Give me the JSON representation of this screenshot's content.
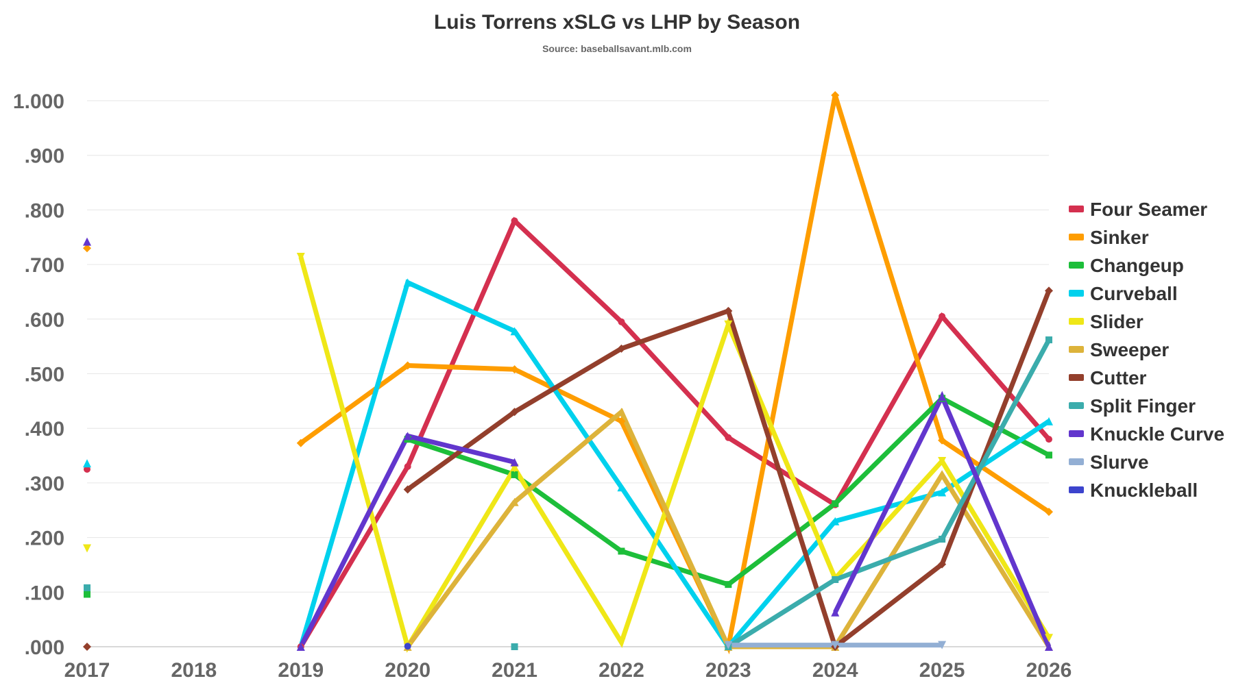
{
  "chart_data": {
    "type": "line",
    "title": "Luis Torrens xSLG vs LHP by Season",
    "subtitle": "Source: baseballsavant.mlb.com",
    "x_categories": [
      "2017",
      "2018",
      "2019",
      "2020",
      "2021",
      "2022",
      "2023",
      "2024",
      "2025",
      "2026"
    ],
    "y_ticks": [
      ".000",
      ".100",
      ".200",
      ".300",
      ".400",
      ".500",
      ".600",
      ".700",
      ".800",
      ".900",
      "1.000"
    ],
    "ylim": [
      0,
      1.0
    ],
    "grid": true,
    "legend_position": "right",
    "series": [
      {
        "name": "Four Seamer",
        "color": "#d4304f",
        "marker": "circle",
        "values": [
          0.325,
          null,
          0.0,
          0.33,
          0.78,
          0.595,
          0.383,
          0.26,
          0.605,
          0.38
        ]
      },
      {
        "name": "Sinker",
        "color": "#fe9d00",
        "marker": "diamond",
        "values": [
          0.73,
          null,
          0.373,
          0.515,
          0.508,
          0.413,
          0.0,
          1.01,
          0.378,
          0.247
        ]
      },
      {
        "name": "Changeup",
        "color": "#1dbe3a",
        "marker": "square",
        "values": [
          0.096,
          null,
          null,
          0.38,
          0.315,
          0.175,
          0.114,
          0.262,
          0.455,
          0.351
        ]
      },
      {
        "name": "Curveball",
        "color": "#00d1ed",
        "marker": "triangle",
        "values": [
          0.336,
          null,
          0.0,
          0.667,
          0.578,
          0.292,
          0.0,
          0.23,
          0.283,
          0.413
        ]
      },
      {
        "name": "Slider",
        "color": "#efe717",
        "marker": "triangle-down",
        "values": [
          0.18,
          null,
          0.714,
          0.0,
          0.327,
          0.008,
          0.59,
          0.125,
          0.34,
          0.016
        ]
      },
      {
        "name": "Sweeper",
        "color": "#ddb33a",
        "marker": "triangle",
        "values": [
          null,
          null,
          null,
          0.0,
          0.265,
          0.43,
          0.0,
          0.0,
          0.315,
          0.0
        ]
      },
      {
        "name": "Cutter",
        "color": "#933f2c",
        "marker": "diamond",
        "values": [
          0.0,
          null,
          null,
          0.288,
          0.43,
          0.546,
          0.615,
          0.0,
          0.151,
          0.652
        ]
      },
      {
        "name": "Split Finger",
        "color": "#3bacac",
        "marker": "square",
        "values": [
          0.108,
          null,
          null,
          null,
          0.0,
          null,
          0.0,
          0.123,
          0.197,
          0.562
        ]
      },
      {
        "name": "Knuckle Curve",
        "color": "#6236cd",
        "marker": "triangle",
        "values": [
          0.742,
          null,
          0.0,
          0.386,
          0.338,
          null,
          null,
          0.063,
          0.458,
          0.0
        ]
      },
      {
        "name": "Slurve",
        "color": "#93afd4",
        "marker": "triangle-down",
        "values": [
          null,
          null,
          null,
          null,
          null,
          null,
          0.003,
          0.003,
          0.003,
          null
        ]
      },
      {
        "name": "Knuckleball",
        "color": "#3c44cd",
        "marker": "circle",
        "values": [
          null,
          null,
          null,
          0.001,
          null,
          null,
          null,
          null,
          null,
          null
        ]
      }
    ]
  }
}
